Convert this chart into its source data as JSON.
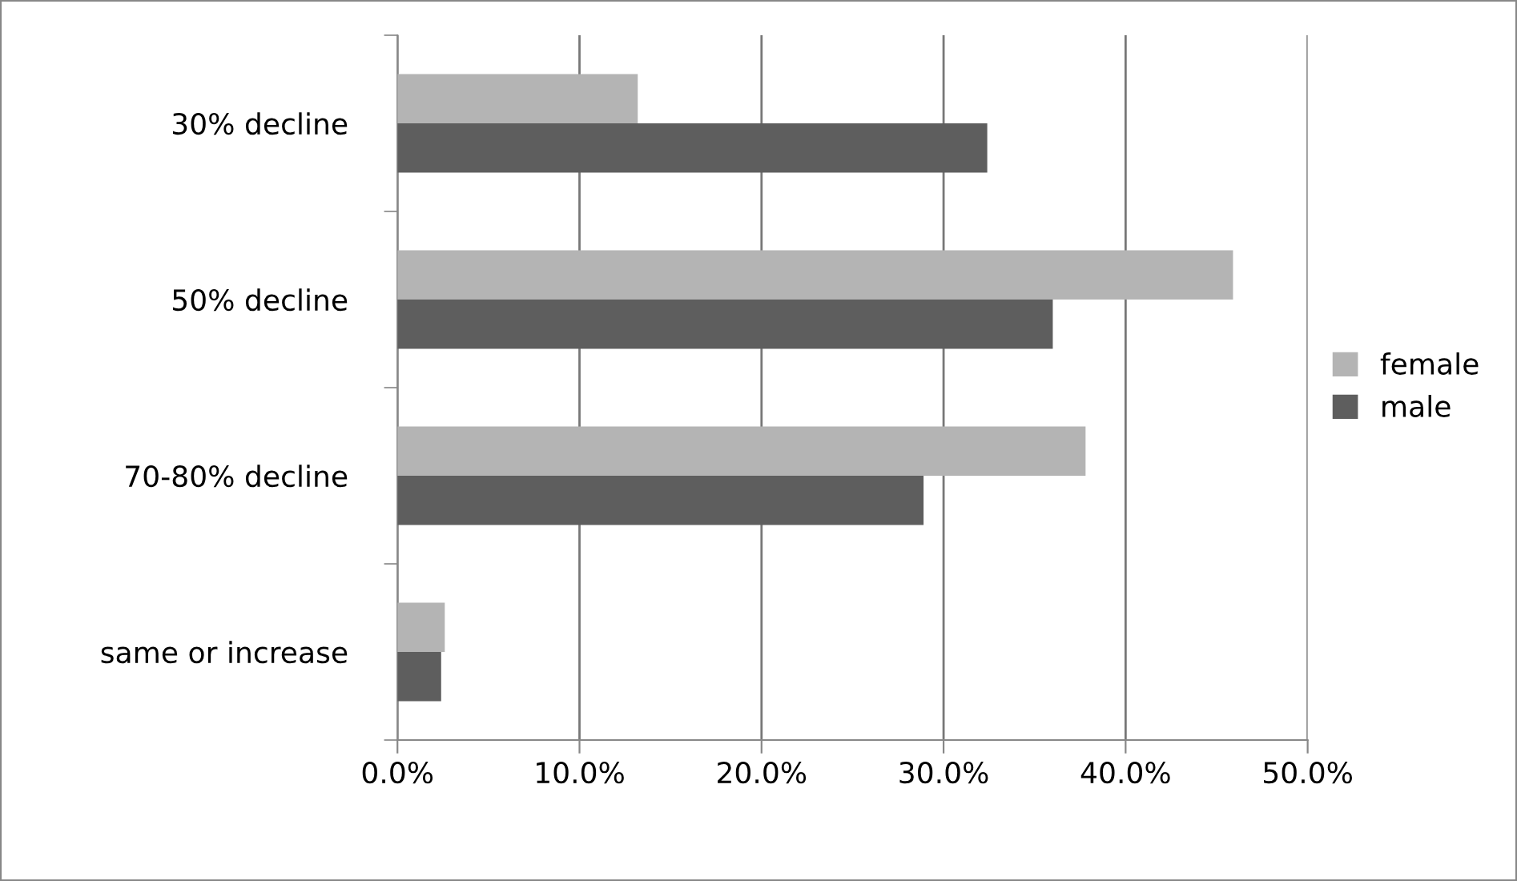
{
  "chart_data": {
    "type": "bar",
    "orientation": "horizontal",
    "categories": [
      "30% decline",
      "50% decline",
      "70-80% decline",
      "same or increase"
    ],
    "series": [
      {
        "name": "female",
        "color": "#b4b4b4",
        "values": [
          13.2,
          45.9,
          37.8,
          2.6
        ]
      },
      {
        "name": "male",
        "color": "#5e5e5e",
        "values": [
          32.4,
          36.0,
          28.9,
          2.4
        ]
      }
    ],
    "xlim": [
      0,
      50
    ],
    "xticks": [
      {
        "value": 0,
        "label": "0.0%"
      },
      {
        "value": 10,
        "label": "10.0%"
      },
      {
        "value": 20,
        "label": "20.0%"
      },
      {
        "value": 30,
        "label": "30.0%"
      },
      {
        "value": 40,
        "label": "40.0%"
      },
      {
        "value": 50,
        "label": "50.0%"
      }
    ],
    "grid": "x",
    "legend": "right"
  }
}
